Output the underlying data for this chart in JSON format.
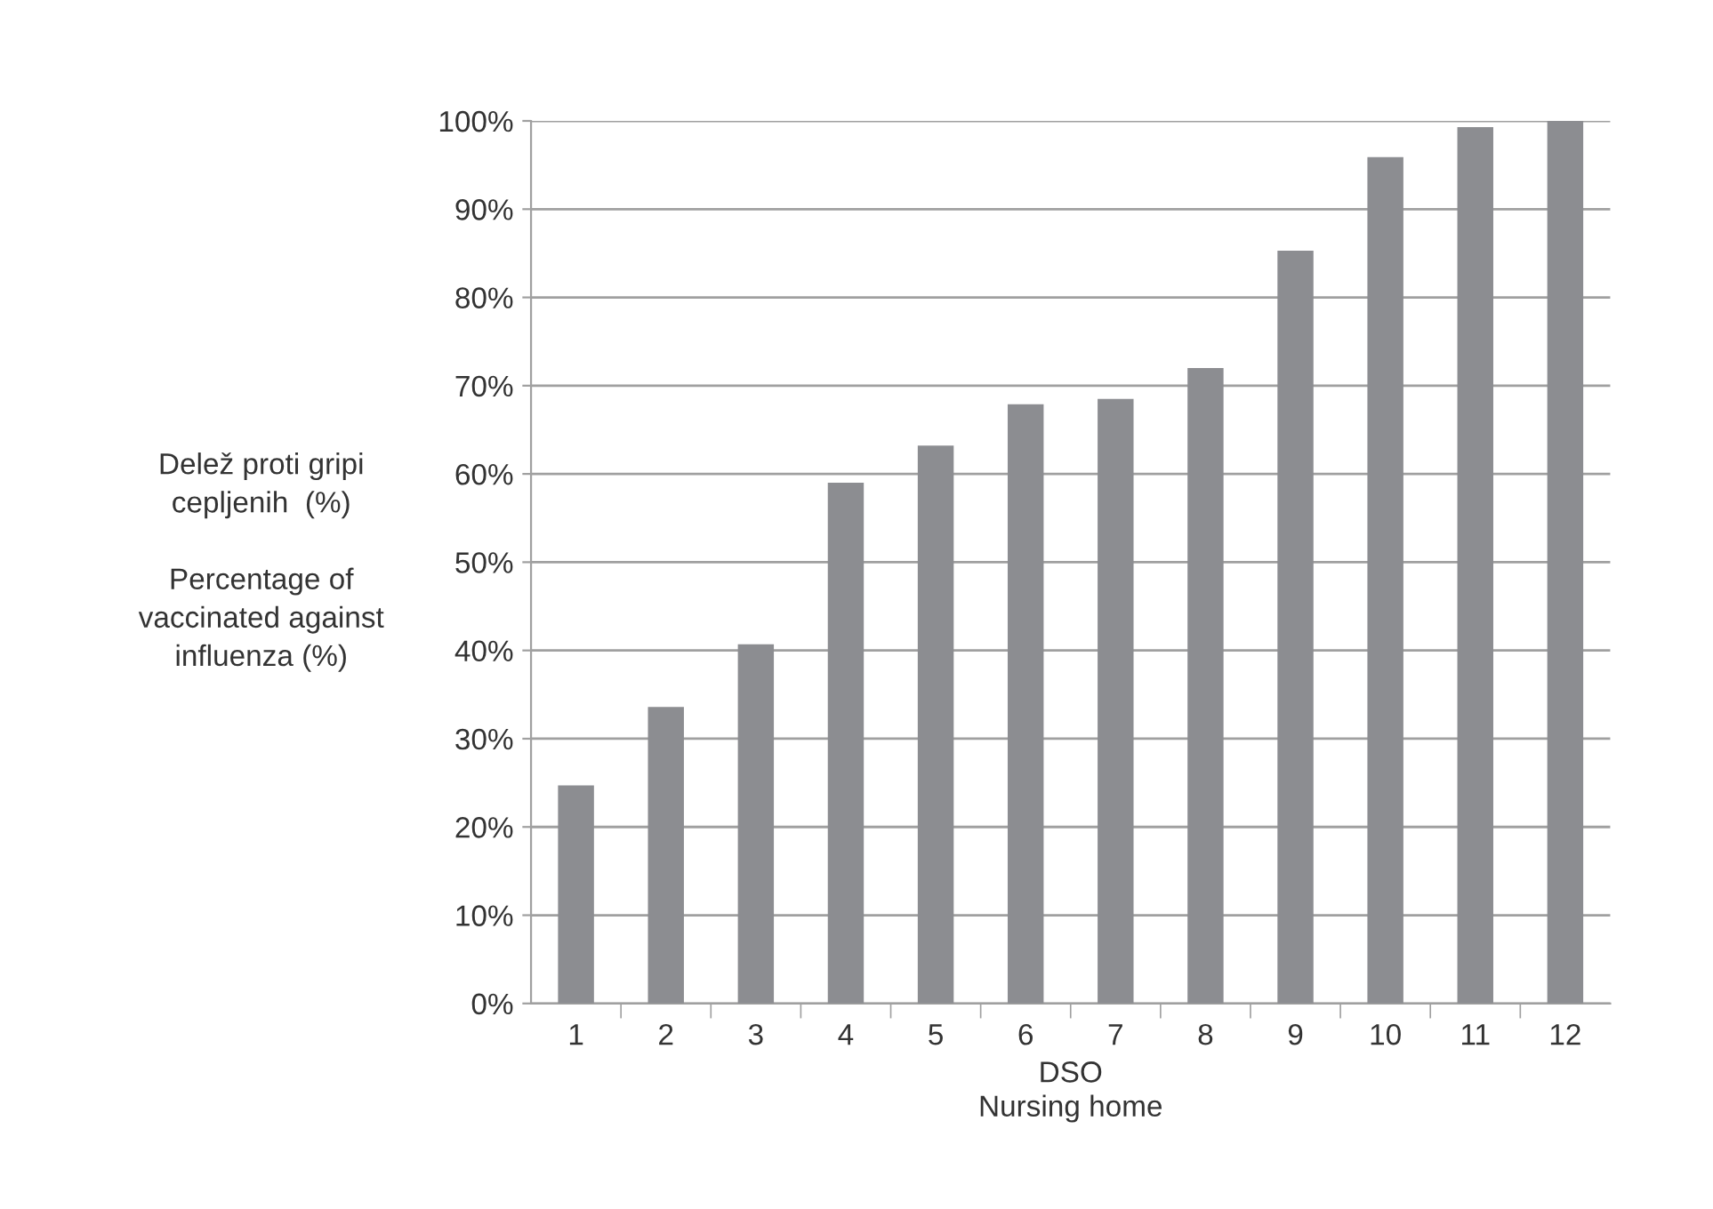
{
  "chart_data": {
    "type": "bar",
    "xlabel": "DSO\nNursing home",
    "ylabel": "Delež proti gripi\ncepljenih  (%)\n\nPercentage of\nvaccinated against\ninfluenza (%)",
    "categories": [
      "1",
      "2",
      "3",
      "4",
      "5",
      "6",
      "7",
      "8",
      "9",
      "10",
      "11",
      "12"
    ],
    "values": [
      24.7,
      33.6,
      40.7,
      59.0,
      63.2,
      67.9,
      68.5,
      72.0,
      85.3,
      95.9,
      99.3,
      100
    ],
    "color": "#8c8d91",
    "ylim": [
      0,
      100
    ],
    "yticks": [
      {
        "value": 0,
        "label": "0%"
      },
      {
        "value": 10,
        "label": "10%"
      },
      {
        "value": 20,
        "label": "20%"
      },
      {
        "value": 30,
        "label": "30%"
      },
      {
        "value": 40,
        "label": "40%"
      },
      {
        "value": 50,
        "label": "50%"
      },
      {
        "value": 60,
        "label": "60%"
      },
      {
        "value": 70,
        "label": "70%"
      },
      {
        "value": 80,
        "label": "80%"
      },
      {
        "value": 90,
        "label": "90%"
      },
      {
        "value": 100,
        "label": "100%"
      }
    ],
    "grid": "y"
  }
}
